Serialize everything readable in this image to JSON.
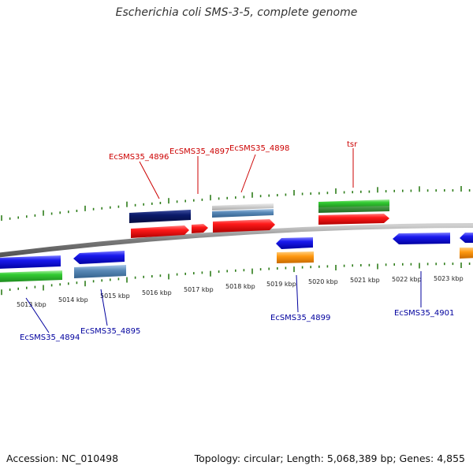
{
  "title": "Escherichia coli SMS-3-5, complete genome",
  "footer": {
    "accession": "Accession: NC_010498",
    "summary": "Topology: circular; Length: 5,068,389 bp; Genes: 4,855"
  },
  "colors": {
    "backbone": "#8c8c8c",
    "tick": "#2e7d1a",
    "label_forward": "#cc0000",
    "label_reverse": "#00009e",
    "red": "#f01010",
    "blue": "#1a1aee",
    "green": "#33cc33",
    "navy": "#0a1a6a",
    "grey": "#bdbdbd",
    "steel": "#5a8ab8",
    "orange": "#ff9910"
  },
  "kbp_labels": [
    "5013 kbp",
    "5014 kbp",
    "5015 kbp",
    "5016 kbp",
    "5017 kbp",
    "5018 kbp",
    "5019 kbp",
    "5020 kbp",
    "5021 kbp",
    "5022 kbp",
    "5023 kbp"
  ],
  "gene_labels_forward": [
    "EcSMS35_4896",
    "EcSMS35_4897",
    "EcSMS35_4898",
    "tsr"
  ],
  "gene_labels_reverse": [
    "EcSMS35_4894",
    "EcSMS35_4895",
    "EcSMS35_4899",
    "EcSMS35_4901"
  ]
}
